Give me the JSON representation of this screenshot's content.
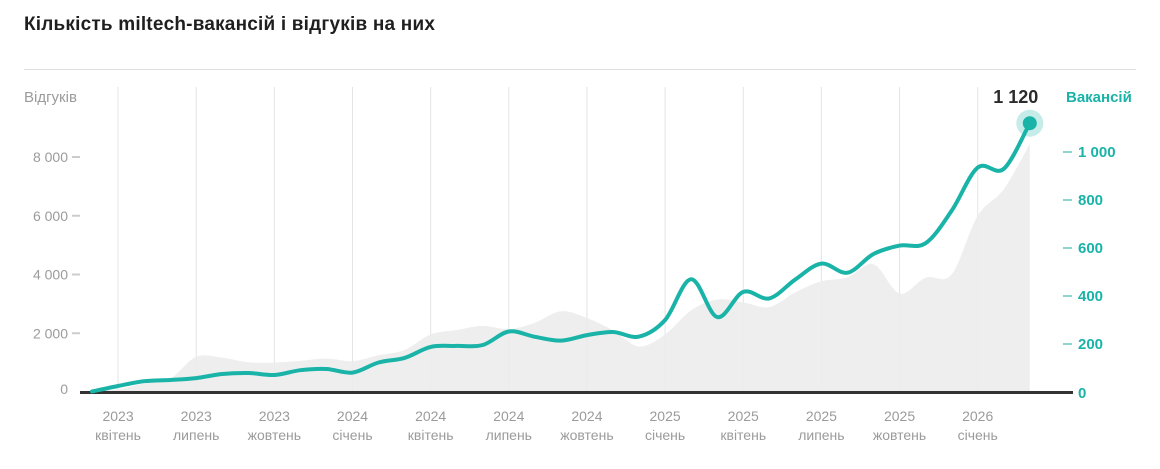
{
  "page": {
    "title": "Кількість miltech-вакансій і відгуків на них"
  },
  "colors": {
    "accent_teal": "#1ab3a8",
    "area_fill": "#ececec",
    "grid_line": "#e4e4e4",
    "axis_line": "#333333",
    "muted_text": "#9b9b9b",
    "title_text": "#1f1f1f",
    "endpoint_halo_opacity": "0.25"
  },
  "chart_data": {
    "type": "line",
    "title": "Кількість miltech-вакансій і відгуків на них",
    "grid": "vertical-only",
    "x": [
      "2023-03",
      "2023-04",
      "2023-05",
      "2023-06",
      "2023-07",
      "2023-08",
      "2023-09",
      "2023-10",
      "2023-11",
      "2023-12",
      "2024-01",
      "2024-02",
      "2024-03",
      "2024-04",
      "2024-05",
      "2024-06",
      "2024-07",
      "2024-08",
      "2024-09",
      "2024-10",
      "2024-11",
      "2024-12",
      "2025-01",
      "2025-02",
      "2025-03",
      "2025-04",
      "2025-05",
      "2025-06",
      "2025-07",
      "2025-08",
      "2025-09",
      "2025-10",
      "2025-11",
      "2025-12",
      "2026-01",
      "2026-02",
      "2026-03"
    ],
    "x_tick_labels": [
      {
        "year": "2023",
        "month": "квітень"
      },
      {
        "year": "2023",
        "month": "липень"
      },
      {
        "year": "2023",
        "month": "жовтень"
      },
      {
        "year": "2024",
        "month": "січень"
      },
      {
        "year": "2024",
        "month": "квітень"
      },
      {
        "year": "2024",
        "month": "липень"
      },
      {
        "year": "2024",
        "month": "жовтень"
      },
      {
        "year": "2025",
        "month": "січень"
      },
      {
        "year": "2025",
        "month": "квітень"
      },
      {
        "year": "2025",
        "month": "липень"
      },
      {
        "year": "2025",
        "month": "жовтень"
      },
      {
        "year": "2026",
        "month": "січень"
      }
    ],
    "series": [
      {
        "name": "Відгуків",
        "type": "area",
        "axis": "left",
        "color": "#ececec",
        "values": [
          10,
          90,
          290,
          450,
          1200,
          1170,
          1010,
          1000,
          1060,
          1140,
          1050,
          1250,
          1430,
          1960,
          2110,
          2250,
          2140,
          2360,
          2750,
          2520,
          2100,
          1550,
          1960,
          2780,
          3150,
          3050,
          2890,
          3390,
          3770,
          3900,
          4350,
          3350,
          3890,
          4000,
          6000,
          6900,
          8450
        ]
      },
      {
        "name": "Вакансій",
        "type": "line",
        "axis": "right",
        "color": "#1ab3a8",
        "values": [
          2,
          25,
          45,
          50,
          58,
          75,
          79,
          71,
          91,
          96,
          81,
          123,
          142,
          188,
          192,
          196,
          252,
          230,
          214,
          237,
          250,
          231,
          300,
          470,
          312,
          417,
          390,
          469,
          535,
          497,
          575,
          610,
          620,
          755,
          935,
          930,
          1120
        ]
      }
    ],
    "left_axis": {
      "label": "Відгуків",
      "ticks": [
        "0",
        "2 000",
        "4 000",
        "6 000",
        "8 000"
      ],
      "tick_values": [
        0,
        2000,
        4000,
        6000,
        8000
      ],
      "range": [
        0,
        10200
      ]
    },
    "right_axis": {
      "label": "Вакансій",
      "ticks": [
        "0",
        "200",
        "400",
        "600",
        "800",
        "1 000"
      ],
      "tick_values": [
        0,
        200,
        400,
        600,
        800,
        1000
      ],
      "range": [
        0,
        1270
      ]
    },
    "endpoint": {
      "label": "1 120",
      "value": 1120,
      "month": "2026-03"
    },
    "legend_position": "none"
  }
}
